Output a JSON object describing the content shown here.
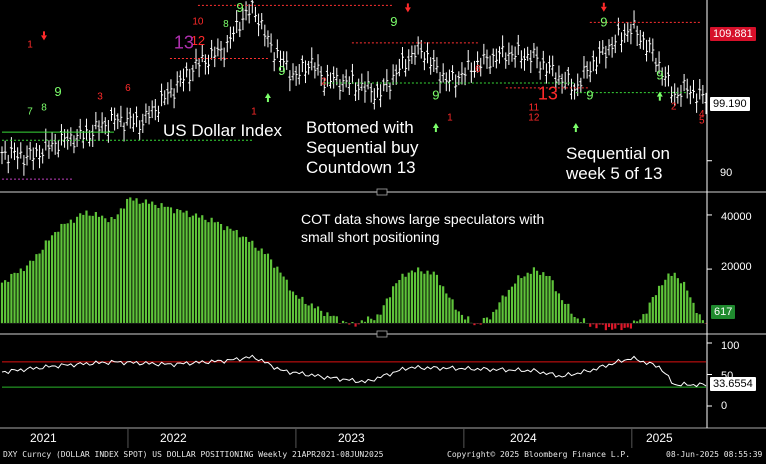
{
  "chart_data": [
    {
      "type": "line",
      "title": "US Dollar Index",
      "interval": "Weekly",
      "ylim": [
        86,
        113
      ],
      "last_value": "99.190",
      "level_tag": "109.881",
      "axis_ticks": [
        "90"
      ],
      "x": [
        "2021-04",
        "2021-06",
        "2021-08",
        "2021-10",
        "2021-12",
        "2022-02",
        "2022-04",
        "2022-06",
        "2022-08",
        "2022-09",
        "2022-10",
        "2022-11",
        "2022-12",
        "2023-01",
        "2023-02",
        "2023-03",
        "2023-05",
        "2023-07",
        "2023-09",
        "2023-10",
        "2023-11",
        "2023-12",
        "2024-02",
        "2024-04",
        "2024-06",
        "2024-08",
        "2024-09",
        "2024-10",
        "2024-12",
        "2025-01",
        "2025-02",
        "2025-03",
        "2025-04",
        "2025-05",
        "2025-06"
      ],
      "values": [
        91.2,
        90.5,
        92.8,
        93.8,
        96.0,
        95.6,
        100.0,
        104.2,
        106.5,
        110.5,
        112.5,
        107.5,
        104.6,
        102.2,
        104.6,
        102.0,
        101.4,
        99.8,
        105.0,
        106.4,
        103.4,
        101.5,
        104.2,
        105.8,
        105.2,
        101.9,
        100.6,
        103.8,
        107.9,
        109.5,
        107.2,
        103.9,
        99.6,
        100.6,
        99.19
      ],
      "annotations": [
        "US Dollar Index",
        "Bottomed with",
        "Sequential buy",
        "Countdown 13",
        "Sequential on",
        "week 5 of 13"
      ]
    },
    {
      "type": "bar",
      "title": "COT data shows large speculators with small short positioning",
      "ylim": [
        -2500,
        47000
      ],
      "axis_ticks": [
        "40000",
        "20000"
      ],
      "last_value": "617",
      "x": [
        "2021-04",
        "2021-06",
        "2021-08",
        "2021-10",
        "2021-12",
        "2022-01",
        "2022-03",
        "2022-05",
        "2022-07",
        "2022-09",
        "2022-11",
        "2022-12",
        "2023-01",
        "2023-03",
        "2023-05",
        "2023-07",
        "2023-08",
        "2023-09",
        "2023-10",
        "2023-11",
        "2023-12",
        "2024-01",
        "2024-02",
        "2024-03",
        "2024-04",
        "2024-05",
        "2024-06",
        "2024-07",
        "2024-08",
        "2024-09",
        "2024-10",
        "2024-11",
        "2024-12",
        "2025-01",
        "2025-02",
        "2025-03",
        "2025-04",
        "2025-05",
        "2025-06"
      ],
      "values": [
        15000,
        22000,
        35000,
        41000,
        38000,
        46000,
        44000,
        41000,
        38000,
        33000,
        25000,
        18000,
        10000,
        4000,
        -800,
        3000,
        14000,
        19000,
        19500,
        18000,
        9000,
        2000,
        -600,
        3000,
        11000,
        17000,
        19500,
        18000,
        9000,
        2000,
        -500,
        -1500,
        -2000,
        -1200,
        4000,
        14000,
        19000,
        12000,
        617
      ]
    },
    {
      "type": "line",
      "title": "",
      "ylim": [
        0,
        100
      ],
      "axis_ticks": [
        "100",
        "50",
        "0"
      ],
      "last_value": "33.6554",
      "reference_lines": [
        70,
        30
      ],
      "x": [
        "2021-04",
        "2021-08",
        "2021-12",
        "2022-04",
        "2022-08",
        "2022-10",
        "2022-12",
        "2023-03",
        "2023-06",
        "2023-09",
        "2023-12",
        "2024-03",
        "2024-06",
        "2024-08",
        "2024-10",
        "2024-12",
        "2025-01",
        "2025-03",
        "2025-04",
        "2025-06"
      ],
      "values": [
        54,
        64,
        70,
        66,
        72,
        78,
        56,
        46,
        38,
        61,
        60,
        58,
        56,
        47,
        56,
        70,
        76,
        62,
        34,
        33.6554
      ]
    }
  ],
  "x_axis": {
    "years": [
      "2021",
      "2022",
      "2023",
      "2024",
      "2025"
    ]
  },
  "annotations": {
    "title": "US Dollar Index",
    "bottom_line1": "Bottomed with",
    "bottom_line2": "Sequential buy",
    "bottom_line3": "Countdown 13",
    "seq_line1": "Sequential on",
    "seq_line2": "week 5 of 13",
    "cot_line1": "COT data shows large speculators with",
    "cot_line2": "small short positioning"
  },
  "footer": {
    "left": "DXY Curncy (DOLLAR INDEX SPOT) US DOLLAR POSITIONING  Weekly 21APR2021-08JUN2025",
    "center": "Copyright© 2025 Bloomberg Finance L.P.",
    "right": "08-Jun-2025 08:55:39"
  },
  "colors": {
    "background": "#000000",
    "price": "#ffffff",
    "seq_up": "#7cff6b",
    "seq_down": "#ff2a2a",
    "cot_pos": "#5fc43a",
    "cot_neg": "#e0182a",
    "axis_tag_red": "#d6102a",
    "axis_tag_green": "#1f8a2e",
    "axis_tag_white": "#ffffff",
    "tdst_red": "#ff3030",
    "tdst_green": "#38d838",
    "osc_line": "#ffffff",
    "ref_red": "#d11",
    "ref_green": "#2ab52a",
    "divider": "#a8a8a8"
  }
}
